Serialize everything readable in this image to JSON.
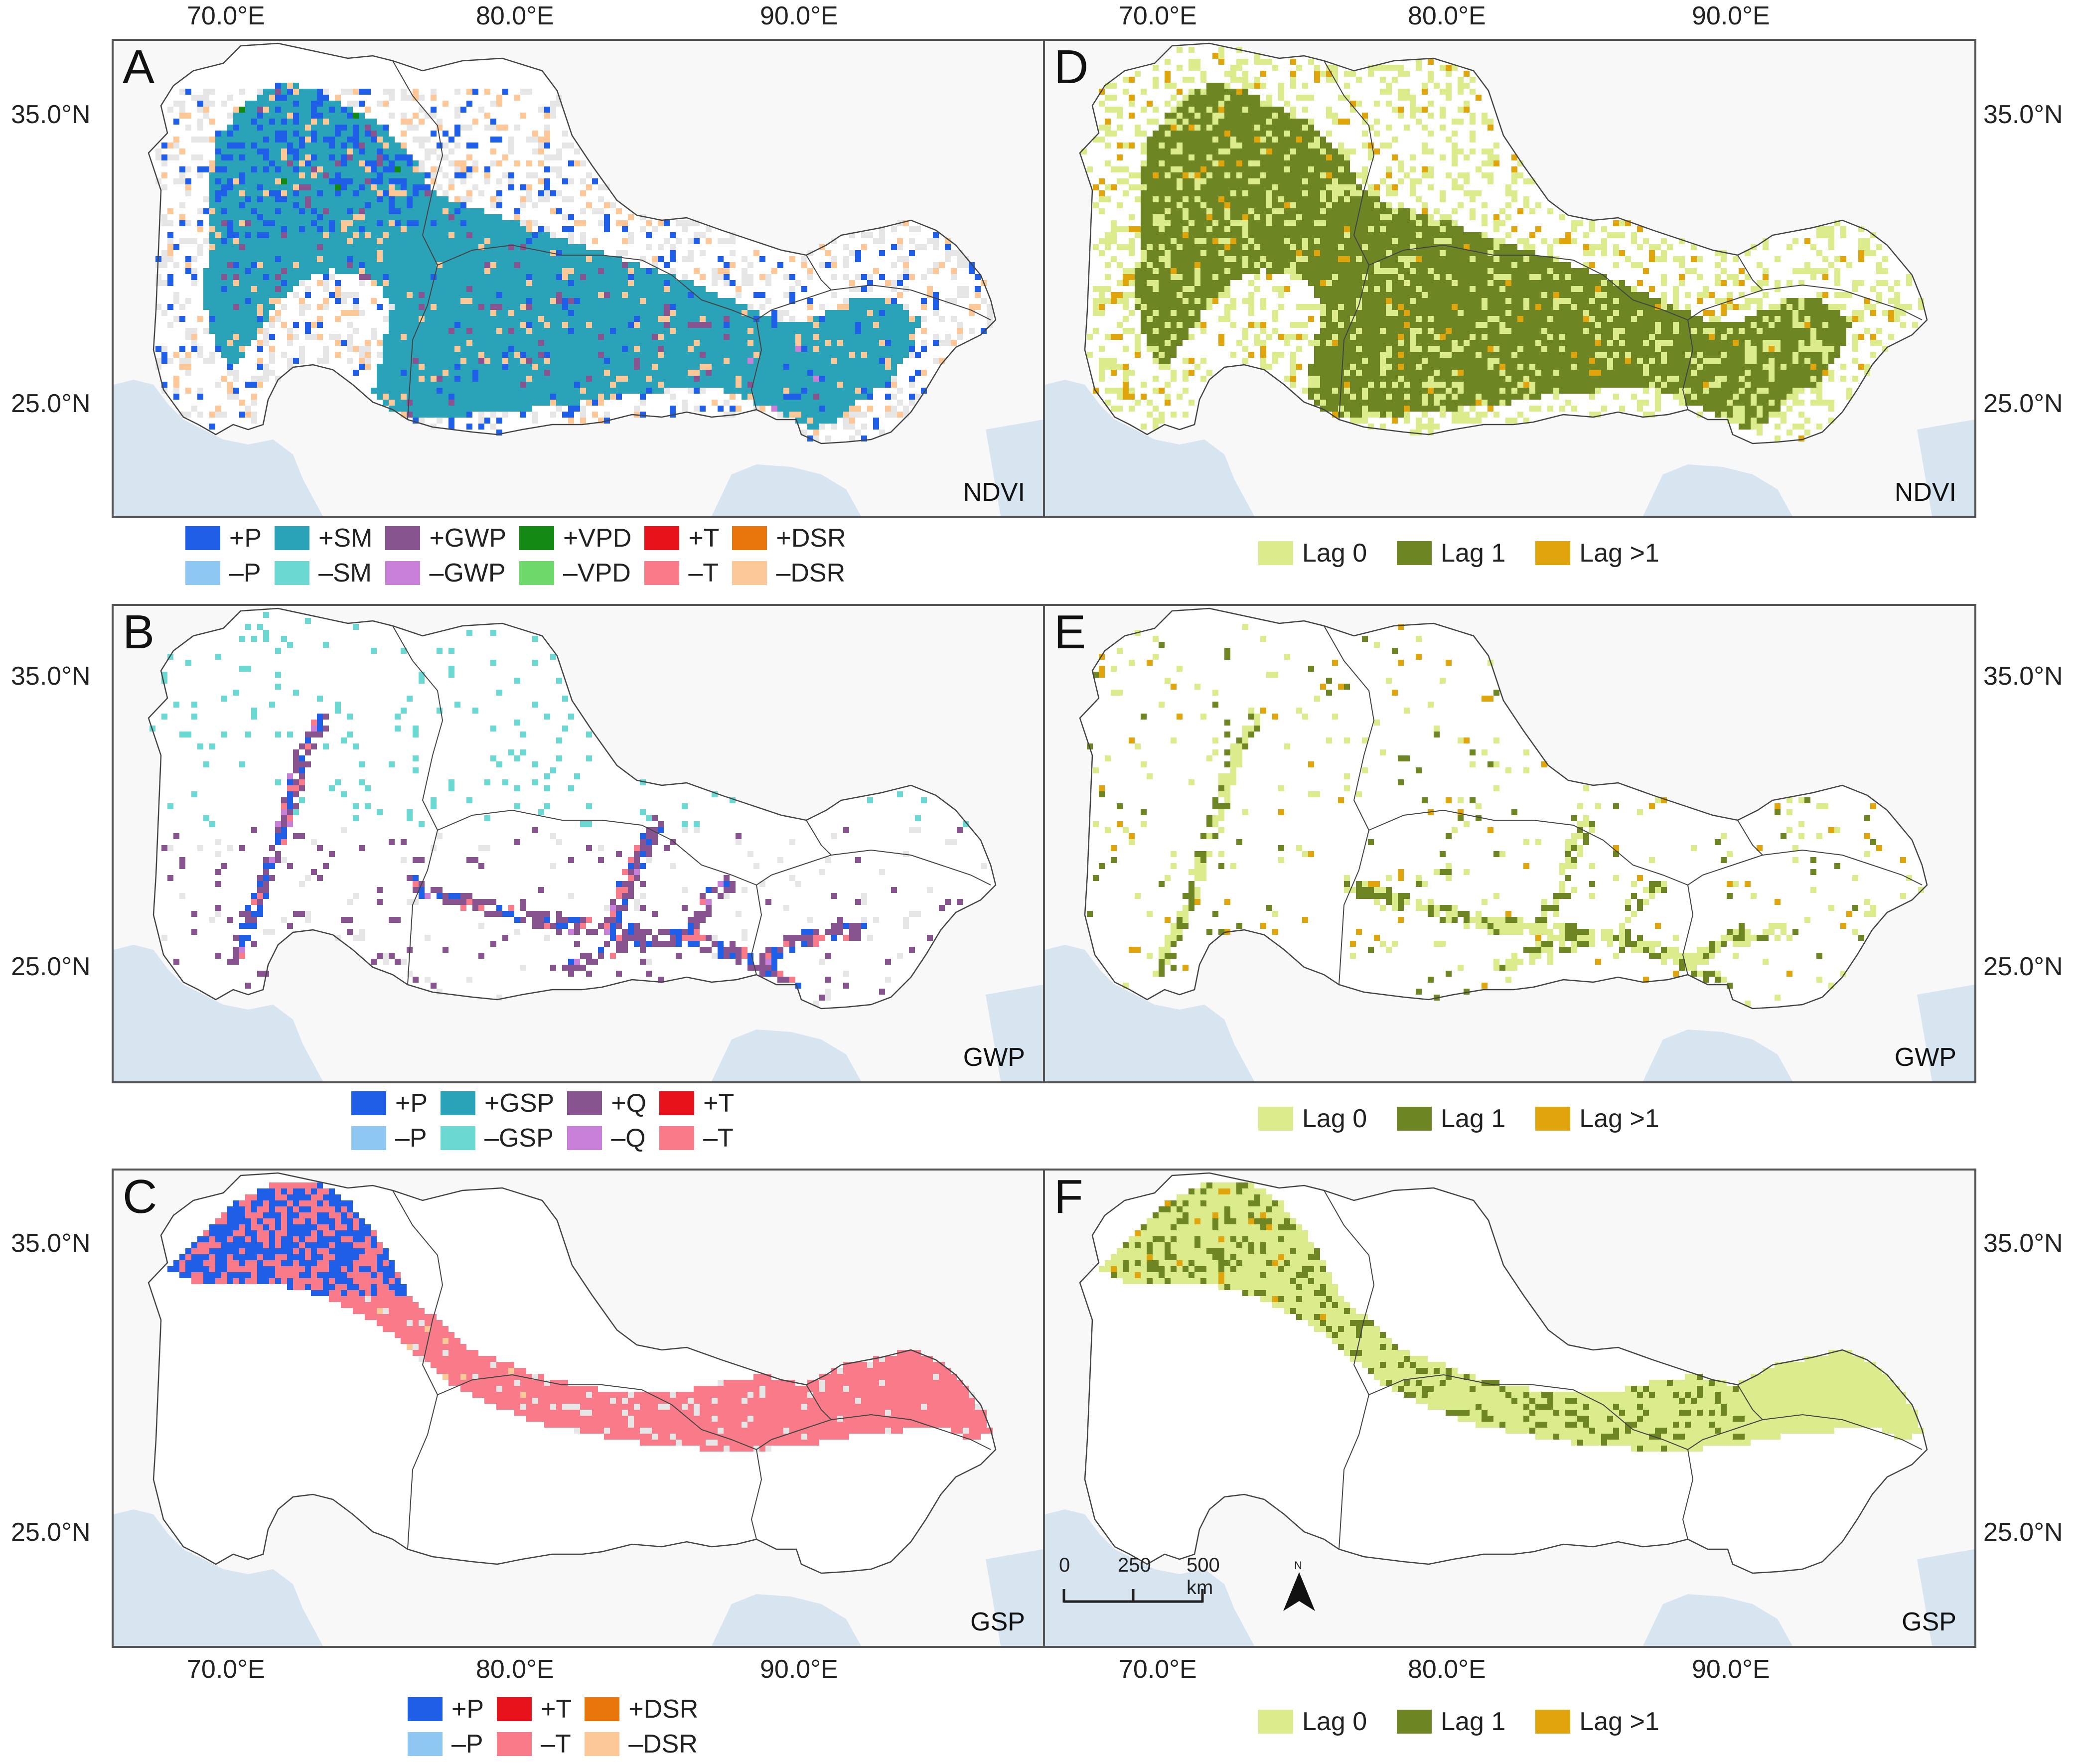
{
  "axes": {
    "lon_top": [
      "70.0°E",
      "80.0°E",
      "90.0°E"
    ],
    "lon_top_right": [
      "70.0°E",
      "80.0°E",
      "90.0°E"
    ],
    "lon_bottom": [
      "70.0°E",
      "80.0°E",
      "90.0°E"
    ],
    "lon_bottom_right": [
      "70.0°E",
      "80.0°E",
      "90.0°E"
    ],
    "lat_left": [
      "35.0°N",
      "25.0°N"
    ],
    "lat_right": [
      "35.0°N",
      "25.0°N"
    ]
  },
  "panels": {
    "A": {
      "letter": "A",
      "variable": "NDVI"
    },
    "B": {
      "letter": "B",
      "variable": "GWP"
    },
    "C": {
      "letter": "C",
      "variable": "GSP"
    },
    "D": {
      "letter": "D",
      "variable": "NDVI"
    },
    "E": {
      "letter": "E",
      "variable": "GWP"
    },
    "F": {
      "letter": "F",
      "variable": "GSP"
    }
  },
  "legends": {
    "ndvi": [
      {
        "label": "+P",
        "color": "#1f5fe8"
      },
      {
        "label": "+SM",
        "color": "#2aa3b8"
      },
      {
        "label": "+GWP",
        "color": "#87548f"
      },
      {
        "label": "+VPD",
        "color": "#148a14"
      },
      {
        "label": "+T",
        "color": "#e8121a"
      },
      {
        "label": "+DSR",
        "color": "#e8760a"
      },
      {
        "label": "–P",
        "color": "#8ec8f2"
      },
      {
        "label": "–SM",
        "color": "#6cd8d2"
      },
      {
        "label": "–GWP",
        "color": "#c77fd8"
      },
      {
        "label": "–VPD",
        "color": "#6fd86a"
      },
      {
        "label": "–T",
        "color": "#f97a88"
      },
      {
        "label": "–DSR",
        "color": "#fcc898"
      }
    ],
    "gwp": [
      {
        "label": "+P",
        "color": "#1f5fe8"
      },
      {
        "label": "+GSP",
        "color": "#2aa3b8"
      },
      {
        "label": "+Q",
        "color": "#87548f"
      },
      {
        "label": "+T",
        "color": "#e8121a"
      },
      {
        "label": "–P",
        "color": "#8ec8f2"
      },
      {
        "label": "–GSP",
        "color": "#6cd8d2"
      },
      {
        "label": "–Q",
        "color": "#c77fd8"
      },
      {
        "label": "–T",
        "color": "#f97a88"
      }
    ],
    "gsp": [
      {
        "label": "+P",
        "color": "#1f5fe8"
      },
      {
        "label": "+T",
        "color": "#e8121a"
      },
      {
        "label": "+DSR",
        "color": "#e8760a"
      },
      {
        "label": "–P",
        "color": "#8ec8f2"
      },
      {
        "label": "–T",
        "color": "#f97a88"
      },
      {
        "label": "–DSR",
        "color": "#fcc898"
      }
    ],
    "lag": [
      {
        "label": "Lag 0",
        "color": "#dcec8c"
      },
      {
        "label": "Lag 1",
        "color": "#6e8524"
      },
      {
        "label": "Lag >1",
        "color": "#e0a40c"
      }
    ]
  },
  "scale": {
    "labels": [
      "0",
      "250",
      "500 km"
    ]
  },
  "north": {
    "label": "N"
  },
  "colors": {
    "frame": "#555555",
    "panel_bg": "#f8f8f8",
    "sea": "#d6e5f0",
    "basin_outline": "#444444",
    "nodata": "#e6e6e6"
  }
}
